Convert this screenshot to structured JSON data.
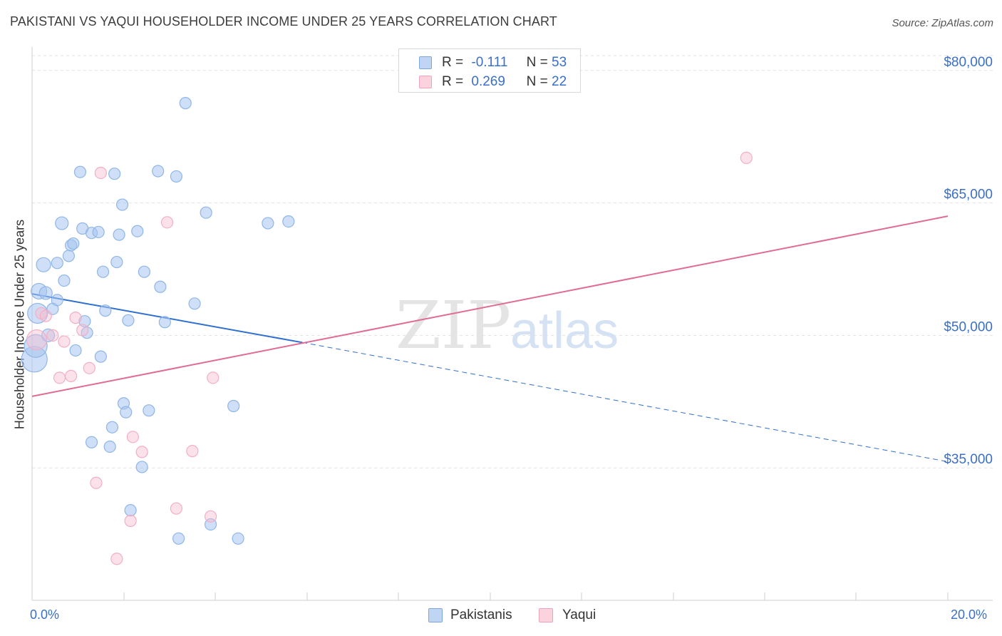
{
  "chart_data": {
    "type": "scatter",
    "title": "PAKISTANI VS YAQUI HOUSEHOLDER INCOME UNDER 25 YEARS CORRELATION CHART",
    "source": "Source: ZipAtlas.com",
    "xlabel": "",
    "ylabel": "Householder Income Under 25 years",
    "xlim": [
      0.0,
      20.0
    ],
    "ylim": [
      20000,
      82000
    ],
    "x_tick_labels": [
      "0.0%",
      "20.0%"
    ],
    "y_ticks": [
      35000,
      50000,
      65000,
      80000
    ],
    "y_tick_labels": [
      "$35,000",
      "$50,000",
      "$65,000",
      "$80,000"
    ],
    "watermark": "ZIPatlas",
    "series": [
      {
        "name": "Pakistanis",
        "color": "#8fb6e8",
        "line_color": "#2f6fd0",
        "R": "-0.111",
        "N": "53",
        "trend": {
          "x1": 0.0,
          "y1": 54700,
          "x2": 5.9,
          "y2": 49200,
          "dash_to_x": 20.0,
          "dash_to_y": 35700
        },
        "points": [
          {
            "x": 0.05,
            "y": 47300,
            "s": 18
          },
          {
            "x": 0.08,
            "y": 48800,
            "s": 16
          },
          {
            "x": 0.12,
            "y": 52500,
            "s": 14
          },
          {
            "x": 0.15,
            "y": 55000,
            "s": 11
          },
          {
            "x": 0.25,
            "y": 58000,
            "s": 10
          },
          {
            "x": 0.3,
            "y": 54800,
            "s": 9
          },
          {
            "x": 0.35,
            "y": 50000,
            "s": 9
          },
          {
            "x": 0.45,
            "y": 53000,
            "s": 8
          },
          {
            "x": 0.55,
            "y": 54000,
            "s": 8
          },
          {
            "x": 0.55,
            "y": 58200,
            "s": 8
          },
          {
            "x": 0.65,
            "y": 62700,
            "s": 9
          },
          {
            "x": 0.7,
            "y": 56200,
            "s": 8
          },
          {
            "x": 0.8,
            "y": 59000,
            "s": 8
          },
          {
            "x": 0.85,
            "y": 60200,
            "s": 8
          },
          {
            "x": 0.9,
            "y": 60400,
            "s": 8
          },
          {
            "x": 0.95,
            "y": 48300,
            "s": 8
          },
          {
            "x": 1.05,
            "y": 68500,
            "s": 8
          },
          {
            "x": 1.1,
            "y": 62100,
            "s": 8
          },
          {
            "x": 1.15,
            "y": 51600,
            "s": 8
          },
          {
            "x": 1.2,
            "y": 50300,
            "s": 8
          },
          {
            "x": 1.3,
            "y": 61600,
            "s": 8
          },
          {
            "x": 1.3,
            "y": 37900,
            "s": 8
          },
          {
            "x": 1.45,
            "y": 61700,
            "s": 8
          },
          {
            "x": 1.5,
            "y": 47600,
            "s": 8
          },
          {
            "x": 1.55,
            "y": 57200,
            "s": 8
          },
          {
            "x": 1.6,
            "y": 52800,
            "s": 8
          },
          {
            "x": 1.7,
            "y": 37400,
            "s": 8
          },
          {
            "x": 1.75,
            "y": 39600,
            "s": 8
          },
          {
            "x": 1.8,
            "y": 68300,
            "s": 8
          },
          {
            "x": 1.85,
            "y": 58300,
            "s": 8
          },
          {
            "x": 1.9,
            "y": 61400,
            "s": 8
          },
          {
            "x": 1.97,
            "y": 64800,
            "s": 8
          },
          {
            "x": 2.0,
            "y": 42300,
            "s": 8
          },
          {
            "x": 2.05,
            "y": 41300,
            "s": 8
          },
          {
            "x": 2.1,
            "y": 51700,
            "s": 8
          },
          {
            "x": 2.15,
            "y": 30200,
            "s": 8
          },
          {
            "x": 2.3,
            "y": 61800,
            "s": 8
          },
          {
            "x": 2.4,
            "y": 35100,
            "s": 8
          },
          {
            "x": 2.45,
            "y": 57200,
            "s": 8
          },
          {
            "x": 2.55,
            "y": 41500,
            "s": 8
          },
          {
            "x": 2.75,
            "y": 68600,
            "s": 8
          },
          {
            "x": 2.8,
            "y": 55500,
            "s": 8
          },
          {
            "x": 2.9,
            "y": 51500,
            "s": 8
          },
          {
            "x": 3.15,
            "y": 68000,
            "s": 8
          },
          {
            "x": 3.2,
            "y": 27000,
            "s": 8
          },
          {
            "x": 3.35,
            "y": 76300,
            "s": 8
          },
          {
            "x": 3.55,
            "y": 53600,
            "s": 8
          },
          {
            "x": 3.8,
            "y": 63900,
            "s": 8
          },
          {
            "x": 3.9,
            "y": 28600,
            "s": 8
          },
          {
            "x": 4.4,
            "y": 42000,
            "s": 8
          },
          {
            "x": 4.5,
            "y": 27000,
            "s": 8
          },
          {
            "x": 5.15,
            "y": 62700,
            "s": 8
          },
          {
            "x": 5.6,
            "y": 62900,
            "s": 8
          }
        ]
      },
      {
        "name": "Yaqui",
        "color": "#f4aec4",
        "line_color": "#e06b95",
        "R": "0.269",
        "N": "22",
        "trend": {
          "x1": 0.0,
          "y1": 43100,
          "x2": 20.0,
          "y2": 63500
        },
        "points": [
          {
            "x": 0.1,
            "y": 49500,
            "s": 14
          },
          {
            "x": 0.2,
            "y": 52500,
            "s": 8
          },
          {
            "x": 0.3,
            "y": 52200,
            "s": 8
          },
          {
            "x": 0.45,
            "y": 50000,
            "s": 8
          },
          {
            "x": 0.6,
            "y": 45200,
            "s": 8
          },
          {
            "x": 0.7,
            "y": 49300,
            "s": 8
          },
          {
            "x": 0.85,
            "y": 45400,
            "s": 8
          },
          {
            "x": 0.95,
            "y": 52000,
            "s": 8
          },
          {
            "x": 1.1,
            "y": 50600,
            "s": 8
          },
          {
            "x": 1.25,
            "y": 46300,
            "s": 8
          },
          {
            "x": 1.4,
            "y": 33300,
            "s": 8
          },
          {
            "x": 1.5,
            "y": 68400,
            "s": 8
          },
          {
            "x": 1.85,
            "y": 24700,
            "s": 8
          },
          {
            "x": 2.15,
            "y": 29000,
            "s": 8
          },
          {
            "x": 2.2,
            "y": 38500,
            "s": 8
          },
          {
            "x": 2.4,
            "y": 36800,
            "s": 8
          },
          {
            "x": 2.95,
            "y": 62800,
            "s": 8
          },
          {
            "x": 3.15,
            "y": 30400,
            "s": 8
          },
          {
            "x": 3.5,
            "y": 36900,
            "s": 8
          },
          {
            "x": 3.9,
            "y": 29500,
            "s": 8
          },
          {
            "x": 3.95,
            "y": 45200,
            "s": 8
          },
          {
            "x": 15.6,
            "y": 70100,
            "s": 8
          }
        ]
      }
    ]
  }
}
